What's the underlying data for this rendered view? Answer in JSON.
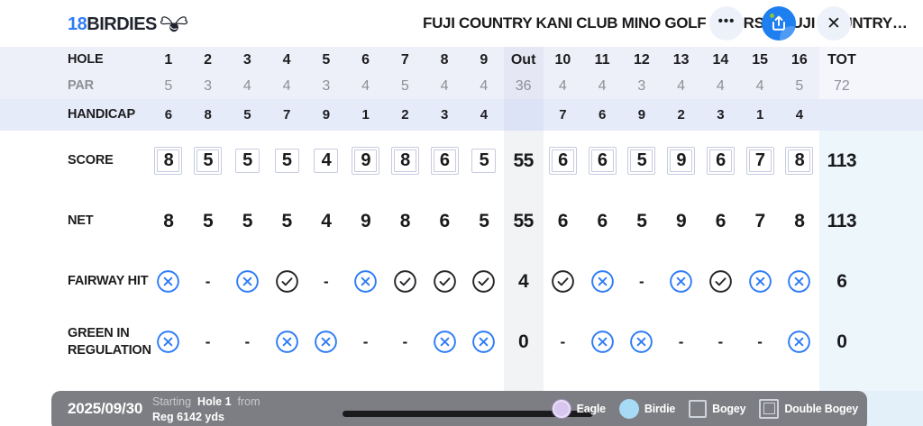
{
  "header": {
    "logo_prefix": "18",
    "logo_suffix": "BIRDIES",
    "title": "FUJI COUNTRY KANI CLUB MINO GOLF COURSE (FUJI COUNTRY…",
    "more_label": "•••",
    "close_label": "✕"
  },
  "table": {
    "hole_label": "HOLE",
    "columns": [
      "1",
      "2",
      "3",
      "4",
      "5",
      "6",
      "7",
      "8",
      "9",
      "Out",
      "10",
      "11",
      "12",
      "13",
      "14",
      "15",
      "16",
      "TOT"
    ],
    "rows": [
      {
        "key": "par",
        "label": "PAR",
        "type": "par",
        "values": [
          "5",
          "3",
          "4",
          "4",
          "3",
          "4",
          "5",
          "4",
          "4",
          "36",
          "4",
          "4",
          "3",
          "4",
          "4",
          "4",
          "5",
          "72"
        ]
      },
      {
        "key": "handicap",
        "label": "HANDICAP",
        "type": "handicap",
        "values": [
          "6",
          "8",
          "5",
          "7",
          "9",
          "1",
          "2",
          "3",
          "4",
          "",
          "7",
          "6",
          "9",
          "2",
          "3",
          "1",
          "4",
          ""
        ]
      },
      {
        "key": "score",
        "label": "SCORE",
        "type": "score",
        "values": [
          "8",
          "5",
          "5",
          "5",
          "4",
          "9",
          "8",
          "6",
          "5",
          "55",
          "6",
          "6",
          "5",
          "9",
          "6",
          "7",
          "8",
          "113"
        ],
        "boxes": [
          "double",
          "double",
          "single",
          "single",
          "single",
          "double",
          "double",
          "double",
          "single",
          null,
          "double",
          "double",
          "double",
          "double",
          "double",
          "double",
          "double",
          null
        ]
      },
      {
        "key": "net",
        "label": "NET",
        "type": "net",
        "values": [
          "8",
          "5",
          "5",
          "5",
          "4",
          "9",
          "8",
          "6",
          "5",
          "55",
          "6",
          "6",
          "5",
          "9",
          "6",
          "7",
          "8",
          "113"
        ]
      },
      {
        "key": "fairway",
        "label": "FAIRWAY HIT",
        "type": "stat",
        "values": [
          "x",
          "-",
          "x",
          "check",
          "-",
          "x",
          "check",
          "check",
          "check",
          "4",
          "check",
          "x",
          "-",
          "x",
          "check",
          "x",
          "x",
          "6"
        ]
      },
      {
        "key": "gir",
        "label": "GREEN IN REGULATION",
        "type": "stat",
        "values": [
          "x",
          "-",
          "-",
          "x",
          "x",
          "-",
          "-",
          "x",
          "x",
          "0",
          "-",
          "x",
          "x",
          "-",
          "-",
          "-",
          "x",
          "0"
        ]
      }
    ]
  },
  "footer": {
    "date": "2025/09/30",
    "starting_label": "Starting",
    "starting_hole": "Hole 1",
    "from_label": "from",
    "tee": "Reg 6142 yds",
    "legend": [
      {
        "type": "eagle",
        "label": "Eagle"
      },
      {
        "type": "birdie",
        "label": "Birdie"
      },
      {
        "type": "bogey",
        "label": "Bogey"
      },
      {
        "type": "double_bogey",
        "label": "Double Bogey"
      }
    ]
  },
  "colors": {
    "accent_blue": "#2e7cf6",
    "icon_dark": "#26262a",
    "share_blue": "#1e7ff0",
    "eagle_fill": "#d8c6ef",
    "birdie_fill": "#a7daf5",
    "box_border": "#c7cbdf"
  }
}
